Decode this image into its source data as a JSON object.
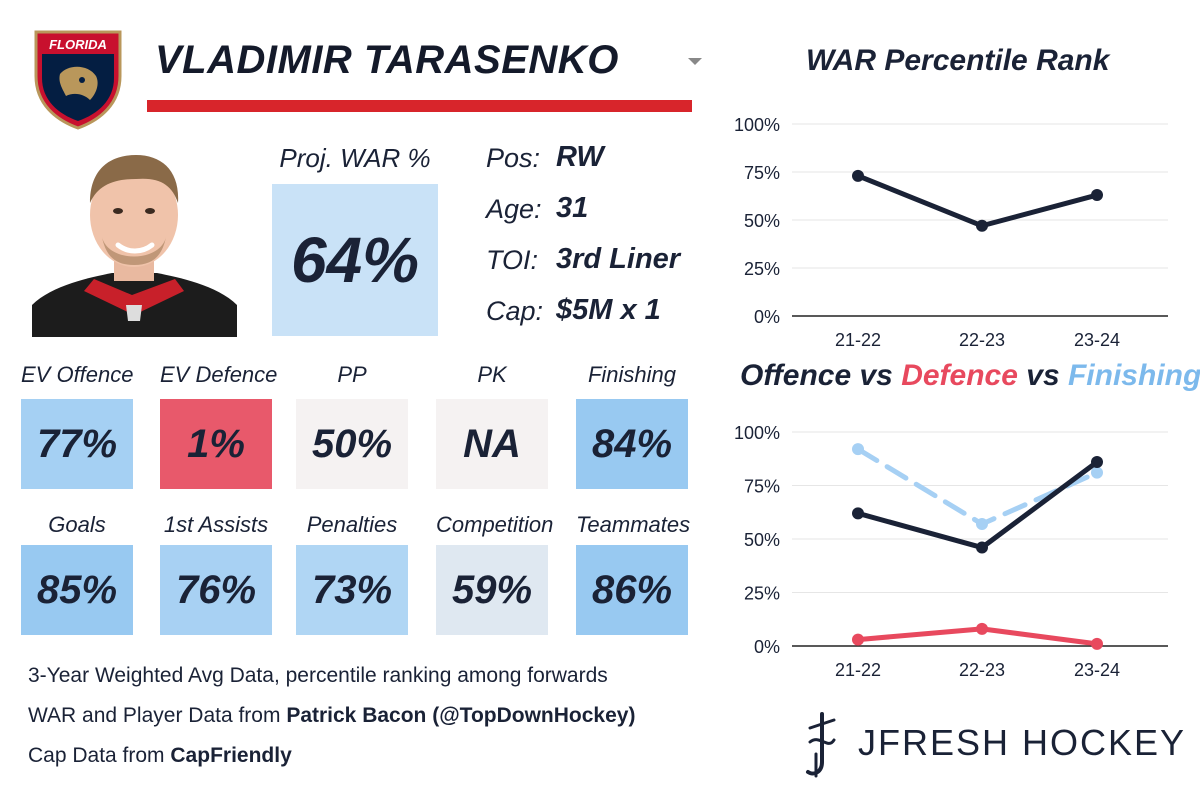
{
  "player": {
    "name": "VLADIMIR TARASENKO",
    "team_logo_text": "FLORIDA"
  },
  "proj_war": {
    "label": "Proj. WAR %",
    "value": "64%"
  },
  "info": [
    {
      "key": "Pos:",
      "value": "RW"
    },
    {
      "key": "Age:",
      "value": "31"
    },
    {
      "key": "TOI:",
      "value": "3rd Liner"
    },
    {
      "key": "Cap:",
      "value": "$5M x 1"
    }
  ],
  "tiles": [
    {
      "label": "EV Offence",
      "value": "77%",
      "color": "#a5d0f3"
    },
    {
      "label": "EV Defence",
      "value": "1%",
      "color": "#e8596b"
    },
    {
      "label": "PP",
      "value": "50%",
      "color": "#f5f2f2"
    },
    {
      "label": "PK",
      "value": "NA",
      "color": "#f5f2f2"
    },
    {
      "label": "Finishing",
      "value": "84%",
      "color": "#98c9f1"
    },
    {
      "label": "Goals",
      "value": "85%",
      "color": "#98c9f1"
    },
    {
      "label": "1st Assists",
      "value": "76%",
      "color": "#a8d1f3"
    },
    {
      "label": "Penalties",
      "value": "73%",
      "color": "#b0d6f4"
    },
    {
      "label": "Competition",
      "value": "59%",
      "color": "#dfe8f1"
    },
    {
      "label": "Teammates",
      "value": "86%",
      "color": "#98c9f1"
    }
  ],
  "footer": {
    "line1": "3-Year Weighted Avg Data, percentile ranking among forwards",
    "line2_prefix": "WAR and Player Data from ",
    "line2_bold": "Patrick Bacon (@TopDownHockey)",
    "line3_prefix": "Cap Data from ",
    "line3_bold": "CapFriendly"
  },
  "brand": "JFRESH HOCKEY",
  "chart_data": [
    {
      "type": "line",
      "title": "WAR Percentile Rank",
      "categories": [
        "21-22",
        "22-23",
        "23-24"
      ],
      "yticks": [
        "0%",
        "25%",
        "50%",
        "75%",
        "100%"
      ],
      "ylim": [
        0,
        100
      ],
      "grid": true,
      "series": [
        {
          "values": [
            73,
            47,
            63
          ],
          "color": "#1a2236",
          "dash": false
        }
      ]
    },
    {
      "type": "line",
      "title_parts": [
        {
          "text": "Offence",
          "color": "#1a2236"
        },
        {
          "text": " vs ",
          "color": "#1a2236"
        },
        {
          "text": "Defence",
          "color": "#e8495e"
        },
        {
          "text": " vs ",
          "color": "#1a2236"
        },
        {
          "text": "Finishing",
          "color": "#7cb9ec"
        }
      ],
      "categories": [
        "21-22",
        "22-23",
        "23-24"
      ],
      "yticks": [
        "0%",
        "25%",
        "50%",
        "75%",
        "100%"
      ],
      "ylim": [
        0,
        100
      ],
      "grid": true,
      "series": [
        {
          "values": [
            92,
            57,
            81
          ],
          "color": "#a6d0f4",
          "dash": true
        },
        {
          "values": [
            62,
            46,
            86
          ],
          "color": "#1a2236",
          "dash": false
        },
        {
          "values": [
            3,
            8,
            1
          ],
          "color": "#e8495e",
          "dash": false
        }
      ]
    }
  ]
}
